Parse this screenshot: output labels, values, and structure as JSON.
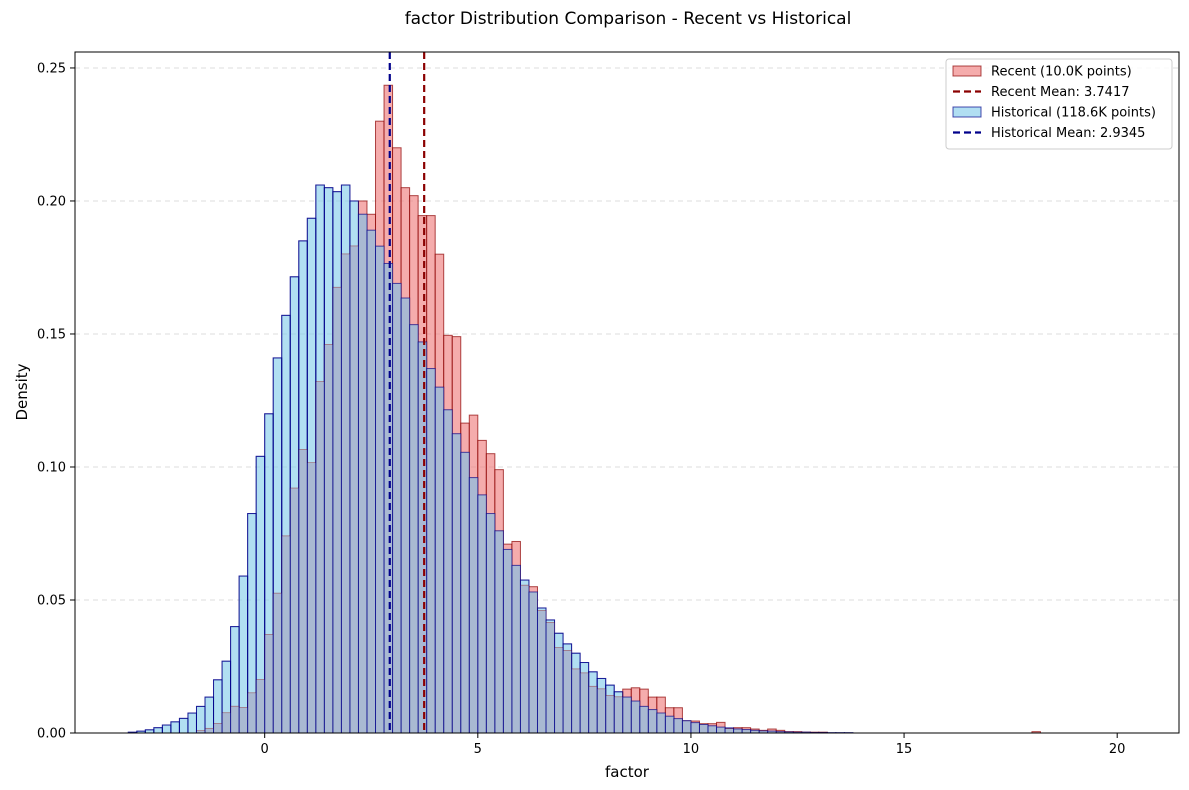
{
  "chart_data": {
    "type": "histogram",
    "title": "factor Distribution Comparison - Recent vs Historical",
    "xlabel": "factor",
    "ylabel": "Density",
    "xlim": [
      -4.45,
      21.45
    ],
    "ylim": [
      0,
      0.256
    ],
    "xticks": [
      0,
      5,
      10,
      15,
      20
    ],
    "yticks": [
      0.0,
      0.05,
      0.1,
      0.15,
      0.2,
      0.25
    ],
    "grid": "y-dashed",
    "legend_position": "top-right",
    "legend": [
      {
        "label": "Recent (10.0K points)",
        "kind": "patch"
      },
      {
        "label": "Recent Mean: 3.7417",
        "kind": "line"
      },
      {
        "label": "Historical (118.6K points)",
        "kind": "patch"
      },
      {
        "label": "Historical Mean: 2.9345",
        "kind": "line"
      }
    ],
    "series": [
      {
        "name": "Historical (118.6K points)",
        "color": "#87CEEB",
        "edge_color": "#00008B",
        "bin_start": -3.2,
        "bin_width": 0.2,
        "values": [
          0.0003,
          0.0007,
          0.0012,
          0.002,
          0.003,
          0.0042,
          0.0055,
          0.0075,
          0.01,
          0.0135,
          0.02,
          0.027,
          0.04,
          0.059,
          0.0825,
          0.104,
          0.12,
          0.141,
          0.157,
          0.1715,
          0.185,
          0.1935,
          0.206,
          0.205,
          0.2035,
          0.206,
          0.2,
          0.195,
          0.189,
          0.183,
          0.1765,
          0.169,
          0.1635,
          0.1535,
          0.147,
          0.137,
          0.13,
          0.1215,
          0.1125,
          0.1055,
          0.096,
          0.0895,
          0.0825,
          0.076,
          0.069,
          0.063,
          0.0575,
          0.053,
          0.047,
          0.0425,
          0.0375,
          0.0335,
          0.03,
          0.0265,
          0.023,
          0.0205,
          0.018,
          0.0155,
          0.0135,
          0.012,
          0.01,
          0.0088,
          0.0075,
          0.0063,
          0.0054,
          0.0046,
          0.0039,
          0.0032,
          0.0027,
          0.0022,
          0.0019,
          0.0015,
          0.0013,
          0.001,
          0.0008,
          0.0007,
          0.0005,
          0.0004,
          0.0003,
          0.0003,
          0.0002,
          0.0002,
          0.0001,
          0.0001,
          0.0001
        ]
      },
      {
        "name": "Recent (10.0K points)",
        "color": "#F08080",
        "edge_color": "#8B0000",
        "bin_start": -1.6,
        "bin_width": 0.2,
        "values": [
          0.0008,
          0.0017,
          0.0035,
          0.0075,
          0.01,
          0.0095,
          0.015,
          0.02,
          0.037,
          0.0525,
          0.074,
          0.092,
          0.1065,
          0.1015,
          0.132,
          0.146,
          0.1675,
          0.18,
          0.183,
          0.2,
          0.195,
          0.23,
          0.2435,
          0.22,
          0.205,
          0.202,
          0.1945,
          0.1945,
          0.18,
          0.1495,
          0.149,
          0.1165,
          0.1195,
          0.11,
          0.105,
          0.099,
          0.071,
          0.072,
          0.0555,
          0.055,
          0.046,
          0.0415,
          0.032,
          0.031,
          0.024,
          0.0225,
          0.0175,
          0.0165,
          0.014,
          0.0135,
          0.0165,
          0.017,
          0.0165,
          0.0135,
          0.0135,
          0.0095,
          0.0095,
          0.0045,
          0.0045,
          0.0035,
          0.0035,
          0.004,
          0.0015,
          0.002,
          0.002,
          0.0015,
          0.001,
          0.0015,
          0.001,
          0.0005,
          0.0005,
          0.0003,
          0.0003,
          0.0003,
          0,
          0,
          0,
          0,
          0,
          0,
          0,
          0,
          0,
          0,
          0,
          0,
          0,
          0,
          0,
          0,
          0,
          0,
          0,
          0,
          0,
          0,
          0,
          0,
          0.0005
        ]
      }
    ],
    "mean_lines": [
      {
        "label": "Recent Mean: 3.7417",
        "x": 3.7417,
        "color": "#8B0000"
      },
      {
        "label": "Historical Mean: 2.9345",
        "x": 2.9345,
        "color": "#00008B"
      }
    ],
    "overlap_color": "#A9B9D2"
  }
}
